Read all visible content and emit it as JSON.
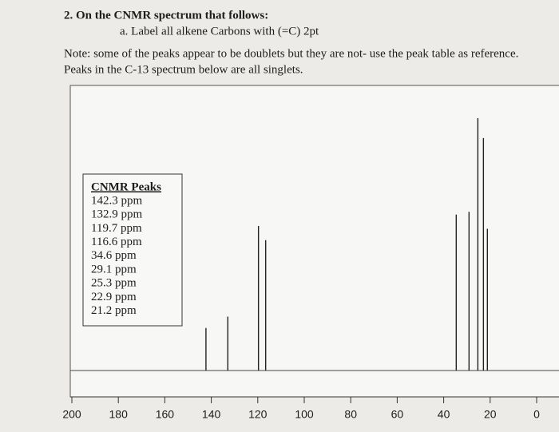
{
  "question": {
    "title": "2. On the CNMR spectrum that follows:",
    "part_a": "a. Label all alkene Carbons with (=C) 2pt"
  },
  "note": [
    "Note: some of the peaks appear to be doublets but they are not- use the peak table as reference.",
    "Peaks in the C-13 spectrum below are all singlets."
  ],
  "peak_table": {
    "title": "CNMR Peaks",
    "rows": [
      "142.3 ppm",
      "132.9 ppm",
      "119.7 ppm",
      "116.6 ppm",
      "34.6 ppm",
      "29.1 ppm",
      "25.3 ppm",
      "22.9 ppm",
      "21.2 ppm"
    ]
  },
  "chart_data": {
    "type": "spectrum",
    "x": [
      142.3,
      132.9,
      119.7,
      116.6,
      34.6,
      29.1,
      25.3,
      22.9,
      21.2
    ],
    "values": [
      15,
      19,
      51,
      46,
      55,
      56,
      89,
      82,
      50
    ],
    "xlim": [
      200,
      0
    ],
    "ylim": [
      0,
      100
    ],
    "xticks": [
      200,
      180,
      160,
      140,
      120,
      100,
      80,
      60,
      40,
      20,
      0
    ],
    "color": "#222222"
  }
}
